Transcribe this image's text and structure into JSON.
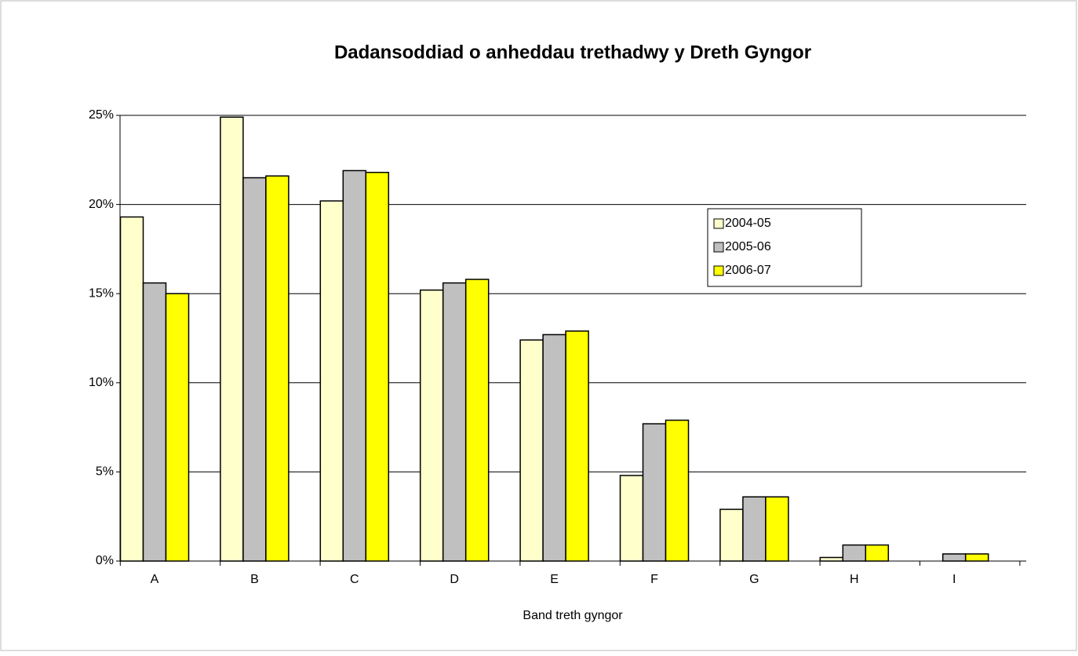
{
  "chart_data": {
    "type": "bar",
    "title": "Dadansoddiad o anheddau trethadwy y Dreth Gyngor",
    "x_label": "Band treth gyngor",
    "categories": [
      "A",
      "B",
      "C",
      "D",
      "E",
      "F",
      "G",
      "H",
      "I"
    ],
    "series": [
      {
        "name": "2004-05",
        "color": "#ffffcc",
        "values": [
          19.3,
          24.9,
          20.2,
          15.2,
          12.4,
          4.8,
          2.9,
          0.2,
          null
        ]
      },
      {
        "name": "2005-06",
        "color": "#c0c0c0",
        "values": [
          15.6,
          21.5,
          21.9,
          15.6,
          12.7,
          7.7,
          3.6,
          0.9,
          0.4
        ]
      },
      {
        "name": "2006-07",
        "color": "#ffff00",
        "values": [
          15.0,
          21.6,
          21.8,
          15.8,
          12.9,
          7.9,
          3.6,
          0.9,
          0.4
        ]
      }
    ],
    "ylim": [
      0,
      25
    ],
    "yticks": [
      {
        "value": 0,
        "label": "0%"
      },
      {
        "value": 5,
        "label": "5%"
      },
      {
        "value": 10,
        "label": "10%"
      },
      {
        "value": 15,
        "label": "15%"
      },
      {
        "value": 20,
        "label": "20%"
      },
      {
        "value": 25,
        "label": "25%"
      }
    ],
    "grid": true,
    "legend": "right"
  }
}
